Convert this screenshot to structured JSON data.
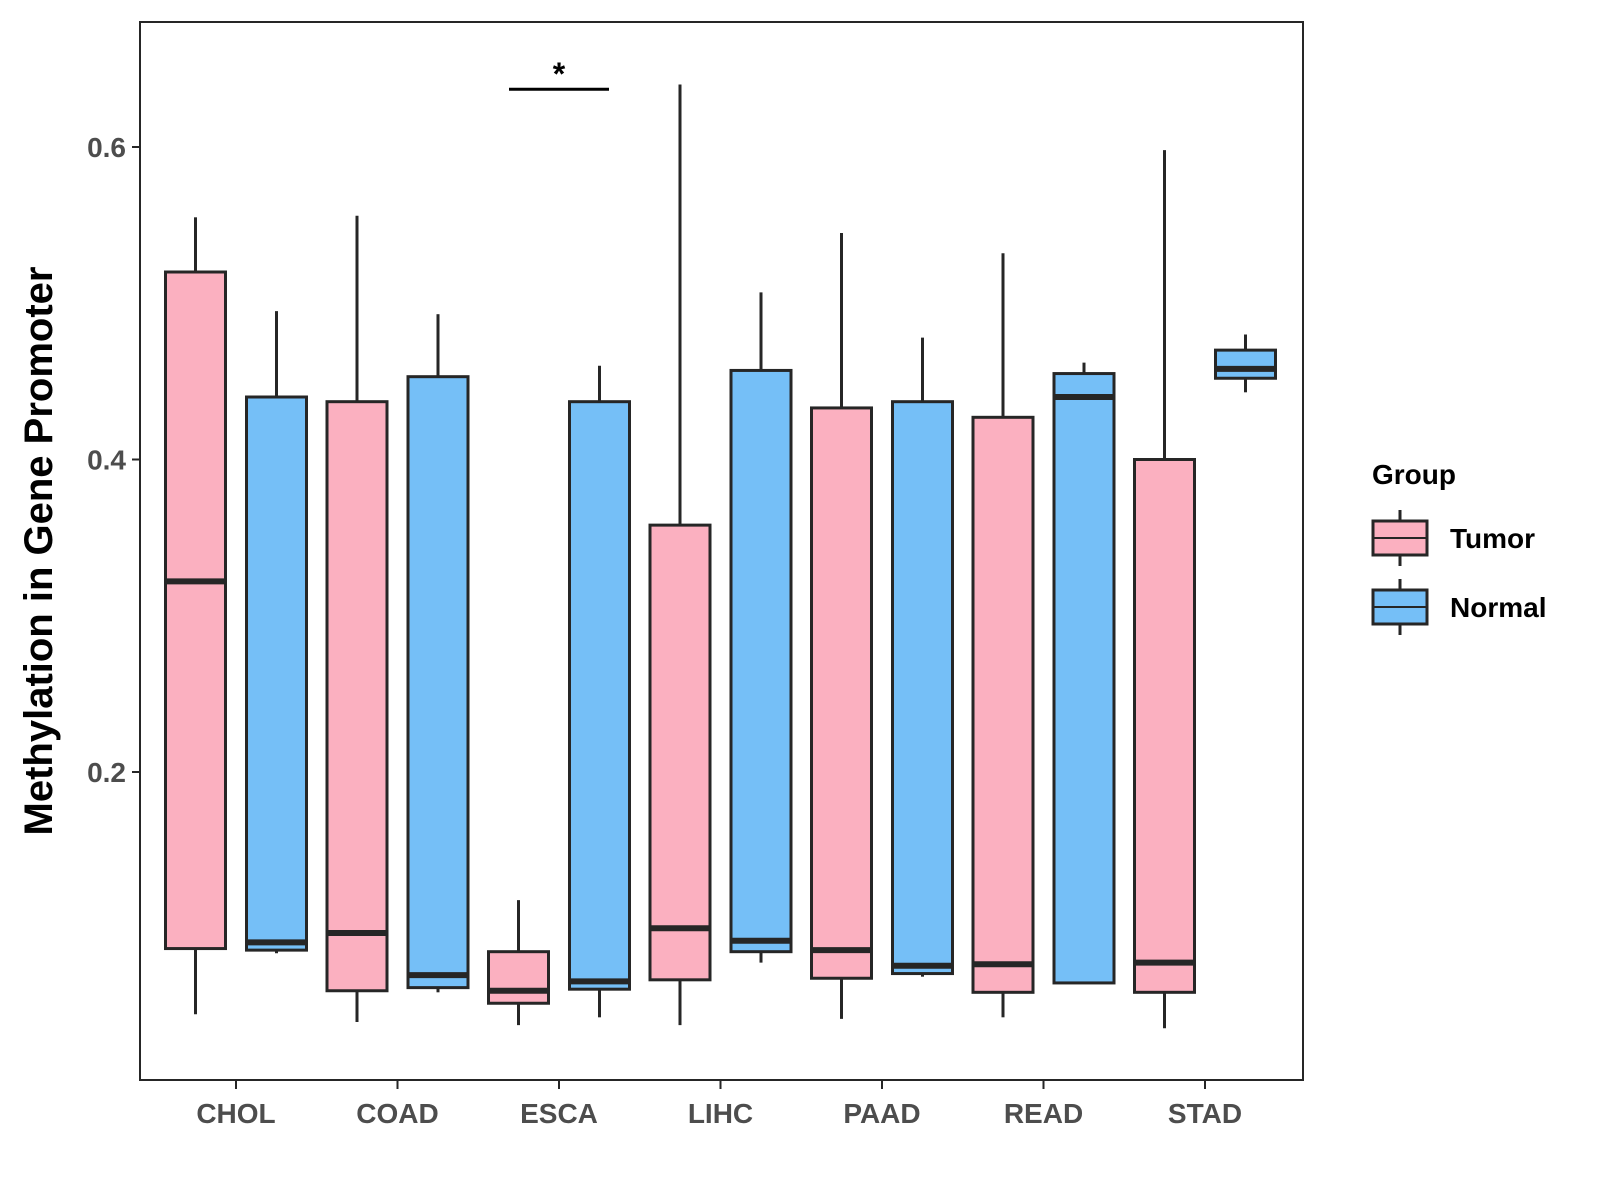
{
  "chart_data": {
    "type": "box",
    "title": "",
    "xlabel": "",
    "ylabel": "Methylation in Gene Promoter",
    "ylim": [
      -0.0,
      0.68
    ],
    "yticks": [
      0.2,
      0.4,
      0.6
    ],
    "ytick_labels": [
      "0.2",
      "0.4",
      "0.6"
    ],
    "categories": [
      "CHOL",
      "COAD",
      "ESCA",
      "LIHC",
      "PAAD",
      "READ",
      "STAD"
    ],
    "legend": {
      "title": "Group",
      "position": "right",
      "items": [
        {
          "name": "Tumor",
          "color": "#fbb0c0"
        },
        {
          "name": "Normal",
          "color": "#75bff7"
        }
      ]
    },
    "series": [
      {
        "name": "Tumor",
        "color": "#fbb0c0",
        "boxes": [
          {
            "category": "CHOL",
            "min": 0.045,
            "q1": 0.087,
            "median": 0.322,
            "q3": 0.52,
            "max": 0.555
          },
          {
            "category": "COAD",
            "min": 0.04,
            "q1": 0.06,
            "median": 0.097,
            "q3": 0.437,
            "max": 0.556
          },
          {
            "category": "ESCA",
            "min": 0.038,
            "q1": 0.052,
            "median": 0.06,
            "q3": 0.085,
            "max": 0.118
          },
          {
            "category": "LIHC",
            "min": 0.038,
            "q1": 0.067,
            "median": 0.1,
            "q3": 0.358,
            "max": 0.64
          },
          {
            "category": "PAAD",
            "min": 0.042,
            "q1": 0.068,
            "median": 0.086,
            "q3": 0.433,
            "max": 0.545
          },
          {
            "category": "READ",
            "min": 0.043,
            "q1": 0.059,
            "median": 0.077,
            "q3": 0.427,
            "max": 0.532
          },
          {
            "category": "STAD",
            "min": 0.036,
            "q1": 0.059,
            "median": 0.078,
            "q3": 0.4,
            "max": 0.598
          }
        ]
      },
      {
        "name": "Normal",
        "color": "#75bff7",
        "boxes": [
          {
            "category": "CHOL",
            "min": 0.084,
            "q1": 0.086,
            "median": 0.091,
            "q3": 0.44,
            "max": 0.495
          },
          {
            "category": "COAD",
            "min": 0.059,
            "q1": 0.062,
            "median": 0.07,
            "q3": 0.453,
            "max": 0.493
          },
          {
            "category": "ESCA",
            "min": 0.043,
            "q1": 0.061,
            "median": 0.066,
            "q3": 0.437,
            "max": 0.46
          },
          {
            "category": "LIHC",
            "min": 0.078,
            "q1": 0.085,
            "median": 0.092,
            "q3": 0.457,
            "max": 0.507
          },
          {
            "category": "PAAD",
            "min": 0.069,
            "q1": 0.071,
            "median": 0.076,
            "q3": 0.437,
            "max": 0.478
          },
          {
            "category": "READ",
            "min": 0.065,
            "q1": 0.065,
            "median": 0.44,
            "q3": 0.455,
            "max": 0.462
          },
          {
            "category": "STAD",
            "min": 0.443,
            "q1": 0.452,
            "median": 0.458,
            "q3": 0.47,
            "max": 0.48
          }
        ]
      }
    ],
    "annotations": [
      {
        "text": "*",
        "category": "ESCA",
        "y": 0.637
      }
    ],
    "grid": false
  }
}
